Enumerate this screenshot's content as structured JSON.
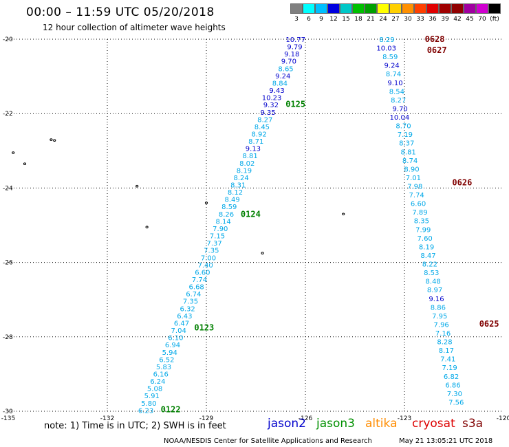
{
  "header": {
    "title": "00:00 – 11:59 UTC 05/20/2018",
    "subtitle": "12 hour collection of altimeter wave heights"
  },
  "scale": {
    "colors": [
      "#808080",
      "#00ffff",
      "#00c0ff",
      "#0000e0",
      "#00c8c8",
      "#00c000",
      "#00a000",
      "#ffff00",
      "#ffd000",
      "#ff9000",
      "#ff4000",
      "#e00000",
      "#a00000",
      "#900000",
      "#a000a0",
      "#d000d0",
      "#000000"
    ],
    "labels": [
      "3",
      "6",
      "9",
      "12",
      "15",
      "18",
      "21",
      "24",
      "27",
      "30",
      "33",
      "36",
      "39",
      "42",
      "45",
      "70",
      "(ft)"
    ]
  },
  "map": {
    "lon_labels": [
      "-135",
      "-132",
      "-129",
      "-126",
      "-123",
      "-120"
    ],
    "lat_labels": [
      "-20",
      "-22",
      "-24",
      "-26",
      "-28",
      "-30"
    ],
    "lon_range": [
      -135,
      -120
    ],
    "lat_range": [
      -30,
      -20
    ]
  },
  "tracks": [
    {
      "id": "pass-0122-0125",
      "label_color": "#008000",
      "passes": [
        {
          "label": "0125",
          "lat": -21.75
        },
        {
          "label": "0124",
          "lat": -24.7
        },
        {
          "label": "0123",
          "lat": -27.75
        },
        {
          "label": "0122",
          "lat": -29.95
        }
      ],
      "start": {
        "lon": -126.0,
        "lat": -20.0
      },
      "end": {
        "lon": -130.6,
        "lat": -29.97
      },
      "values": [
        "10.77",
        "9.79",
        "9.18",
        "9.70",
        "8.65",
        "9.24",
        "8.84",
        "9.43",
        "10.23",
        "9.32",
        "9.35",
        "8.27",
        "8.45",
        "8.92",
        "8.71",
        "9.13",
        "8.81",
        "8.02",
        "8.19",
        "8.24",
        "8.31",
        "8.12",
        "8.49",
        "8.59",
        "8.26",
        "8.14",
        "7.90",
        "7.15",
        "7.37",
        "7.35",
        "7.00",
        "7.40",
        "6.60",
        "7.74",
        "6.68",
        "6.74",
        "7.35",
        "6.32",
        "6.43",
        "6.47",
        "7.04",
        "6.10",
        "6.94",
        "5.94",
        "6.52",
        "5.83",
        "6.16",
        "6.24",
        "5.08",
        "5.91",
        "5.80",
        "6.23"
      ],
      "colors": [
        "dark",
        "dark",
        "dark",
        "dark",
        "light",
        "dark",
        "light",
        "dark",
        "dark",
        "dark",
        "dark",
        "light",
        "light",
        "light",
        "light",
        "dark",
        "light",
        "light",
        "light",
        "light",
        "light",
        "light",
        "light",
        "light",
        "light",
        "light",
        "light",
        "light",
        "light",
        "light",
        "light",
        "light",
        "light",
        "light",
        "light",
        "light",
        "light",
        "light",
        "light",
        "light",
        "light",
        "light",
        "light",
        "light",
        "light",
        "light",
        "light",
        "light",
        "light",
        "light",
        "light",
        "light"
      ]
    },
    {
      "id": "pass-0625-0628",
      "label_color": "#800000",
      "passes": [
        {
          "label": "0628",
          "lat": -20.0
        },
        {
          "label": "0627",
          "lat": -20.3
        },
        {
          "label": "0626",
          "lat": -23.85
        },
        {
          "label": "0625",
          "lat": -27.65
        }
      ],
      "start": {
        "lon": -123.3,
        "lat": -20.0
      },
      "end": {
        "lon": -121.2,
        "lat": -29.75
      },
      "values": [
        "8.29",
        "10.03",
        "8.59",
        "9.24",
        "8.74",
        "9.10",
        "8.54",
        "8.27",
        "9.70",
        "10.04",
        "8.70",
        "7.19",
        "8.37",
        "8.81",
        "8.74",
        "8.90",
        "7.01",
        "7.98",
        "7.74",
        "6.60",
        "7.89",
        "8.35",
        "7.99",
        "7.60",
        "8.19",
        "8.47",
        "8.22",
        "8.53",
        "8.48",
        "8.97",
        "9.16",
        "8.86",
        "7.95",
        "7.96",
        "7.16",
        "8.28",
        "8.17",
        "7.41",
        "7.19",
        "6.82",
        "6.86",
        "7.30",
        "7.56"
      ],
      "colors": [
        "light",
        "dark",
        "light",
        "dark",
        "light",
        "dark",
        "light",
        "light",
        "dark",
        "dark",
        "light",
        "light",
        "light",
        "light",
        "light",
        "light",
        "light",
        "light",
        "light",
        "light",
        "light",
        "light",
        "light",
        "light",
        "light",
        "light",
        "light",
        "light",
        "light",
        "light",
        "dark",
        "light",
        "light",
        "light",
        "light",
        "light",
        "light",
        "light",
        "light",
        "light",
        "light",
        "light",
        "light"
      ]
    }
  ],
  "footer": {
    "note": "note:  1) Time is in UTC;  2) SWH is in feet",
    "legend": [
      {
        "name": "jason2",
        "color": "#0000cc"
      },
      {
        "name": "jason3",
        "color": "#009000"
      },
      {
        "name": "altika",
        "color": "#ff8c00"
      },
      {
        "name": "cryosat",
        "color": "#dd0000"
      },
      {
        "name": "s3a",
        "color": "#800000"
      }
    ],
    "credit": "NOAA/NESDIS Center for Satellite Applications and Research",
    "stamp": "May 21 13:05:21 UTC 2018"
  }
}
